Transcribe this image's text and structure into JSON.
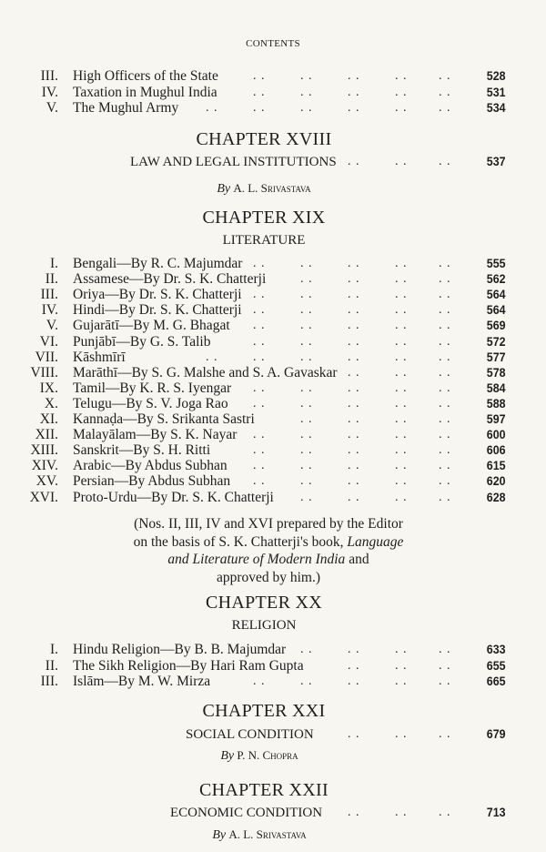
{
  "running_head": "CONTENTS",
  "continued_sections": [
    {
      "num": "III.",
      "title": "High Officers of the State",
      "page": "528"
    },
    {
      "num": "IV.",
      "title": "Taxation in Mughul India",
      "page": "531"
    },
    {
      "num": "V.",
      "title": "The Mughul Army",
      "page": "534"
    }
  ],
  "ch18": {
    "heading": "CHAPTER XVIII",
    "title": "LAW AND LEGAL INSTITUTIONS",
    "page": "537",
    "by": "By",
    "author": "A. L. Srivastava"
  },
  "ch19": {
    "heading": "CHAPTER XIX",
    "title": "LITERATURE",
    "sections": [
      {
        "num": "I.",
        "title": "Bengali—By R. C. Majumdar",
        "page": "555"
      },
      {
        "num": "II.",
        "title": "Assamese—By Dr. S. K. Chatterji",
        "page": "562"
      },
      {
        "num": "III.",
        "title": "Oriya—By Dr. S. K. Chatterji",
        "page": "564"
      },
      {
        "num": "IV.",
        "title": "Hindi—By Dr. S. K. Chatterji",
        "page": "564"
      },
      {
        "num": "V.",
        "title": "Gujarātī—By M. G. Bhagat",
        "page": "569"
      },
      {
        "num": "VI.",
        "title": "Punjābī—By G. S. Talib",
        "page": "572"
      },
      {
        "num": "VII.",
        "title": "Kāshmīrī",
        "page": "577"
      },
      {
        "num": "VIII.",
        "title": "Marāthī—By S. G. Malshe and S. A. Gavaskar",
        "page": "578"
      },
      {
        "num": "IX.",
        "title": "Tamil—By K. R. S. Iyengar",
        "page": "584"
      },
      {
        "num": "X.",
        "title": "Telugu—By S. V. Joga Rao",
        "page": "588"
      },
      {
        "num": "XI.",
        "title": "Kannaḍa—By S. Srikanta Sastri",
        "page": "597"
      },
      {
        "num": "XII.",
        "title": "Malayālam—By S. K. Nayar",
        "page": "600"
      },
      {
        "num": "XIII.",
        "title": "Sanskrit—By S. H. Ritti",
        "page": "606"
      },
      {
        "num": "XIV.",
        "title": "Arabic—By Abdus Subhan",
        "page": "615"
      },
      {
        "num": "XV.",
        "title": "Persian—By Abdus Subhan",
        "page": "620"
      },
      {
        "num": "XVI.",
        "title": "Proto-Urdu—By Dr. S. K. Chatterji",
        "page": "628"
      }
    ],
    "note": {
      "line1": "(Nos. II, III, IV and XVI prepared by the Editor",
      "line2_a": "on the basis of S. K. Chatterji's book,",
      "line2_b": "Language",
      "line3_a": "and Literature of Modern India",
      "line3_b": "and",
      "line4": "approved by him.)"
    }
  },
  "ch20": {
    "heading": "CHAPTER XX",
    "title": "RELIGION",
    "sections": [
      {
        "num": "I.",
        "title": "Hindu Religion—By B. B. Majumdar",
        "page": "633"
      },
      {
        "num": "II.",
        "title": "The Sikh Religion—By Hari Ram Gupta",
        "page": "655"
      },
      {
        "num": "III.",
        "title": "Islām—By M. W. Mirza",
        "page": "665"
      }
    ]
  },
  "ch21": {
    "heading": "CHAPTER XXI",
    "title": "SOCIAL CONDITION",
    "page": "679",
    "by": "By",
    "author": "P. N. Chopra"
  },
  "ch22": {
    "heading": "CHAPTER XXII",
    "title": "ECONOMIC CONDITION",
    "page": "713",
    "by": "By",
    "author": "A. L. Srivastava"
  }
}
